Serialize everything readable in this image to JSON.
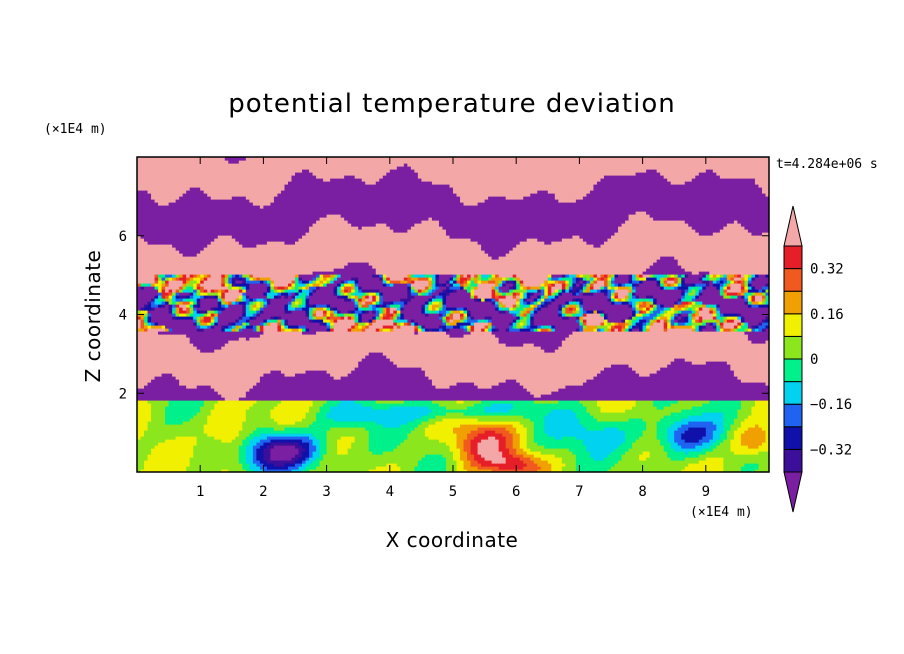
{
  "chart_data": {
    "type": "heatmap",
    "title": "potential temperature deviation",
    "xlabel": "X coordinate",
    "ylabel": "Z coordinate",
    "x_units": "(×1E4 m)",
    "y_units": "(×1E4 m)",
    "time_label": "t=4.284e+06 s",
    "xlim": [
      0,
      10
    ],
    "ylim": [
      0,
      8
    ],
    "x_ticks": [
      1,
      2,
      3,
      4,
      5,
      6,
      7,
      8,
      9
    ],
    "y_ticks": [
      2,
      4,
      6
    ],
    "colorbar": {
      "levels": [
        -0.4,
        -0.32,
        -0.24,
        -0.16,
        -0.08,
        0,
        0.08,
        0.16,
        0.24,
        0.32,
        0.4
      ],
      "labels": [
        "-0.32",
        "-0.16",
        "0",
        "0.16",
        "0.32"
      ],
      "label_values": [
        -0.32,
        -0.16,
        0,
        0.16,
        0.32
      ],
      "colors": [
        "#7a1fa2",
        "#3b0f9a",
        "#1010aa",
        "#1e64f0",
        "#00d2f0",
        "#00f08c",
        "#8ce61e",
        "#f0f000",
        "#f0a000",
        "#f05a1e",
        "#e61e28",
        "#f4a7a7"
      ],
      "extend": "both"
    },
    "layers": [
      {
        "z_range": [
          0,
          1.8
        ],
        "description_values": "mostly -0.08 to 0.16 with blobs to ±0.32"
      },
      {
        "z_range": [
          1.8,
          3.6
        ],
        "description_values": "alternating < -0.4 and > 0.4 bands"
      },
      {
        "z_range": [
          3.6,
          5.0
        ],
        "description_values": "mixed, full range"
      },
      {
        "z_range": [
          5.0,
          8.0
        ],
        "description_values": "alternating < -0.4 and > 0.4 bands"
      }
    ]
  }
}
